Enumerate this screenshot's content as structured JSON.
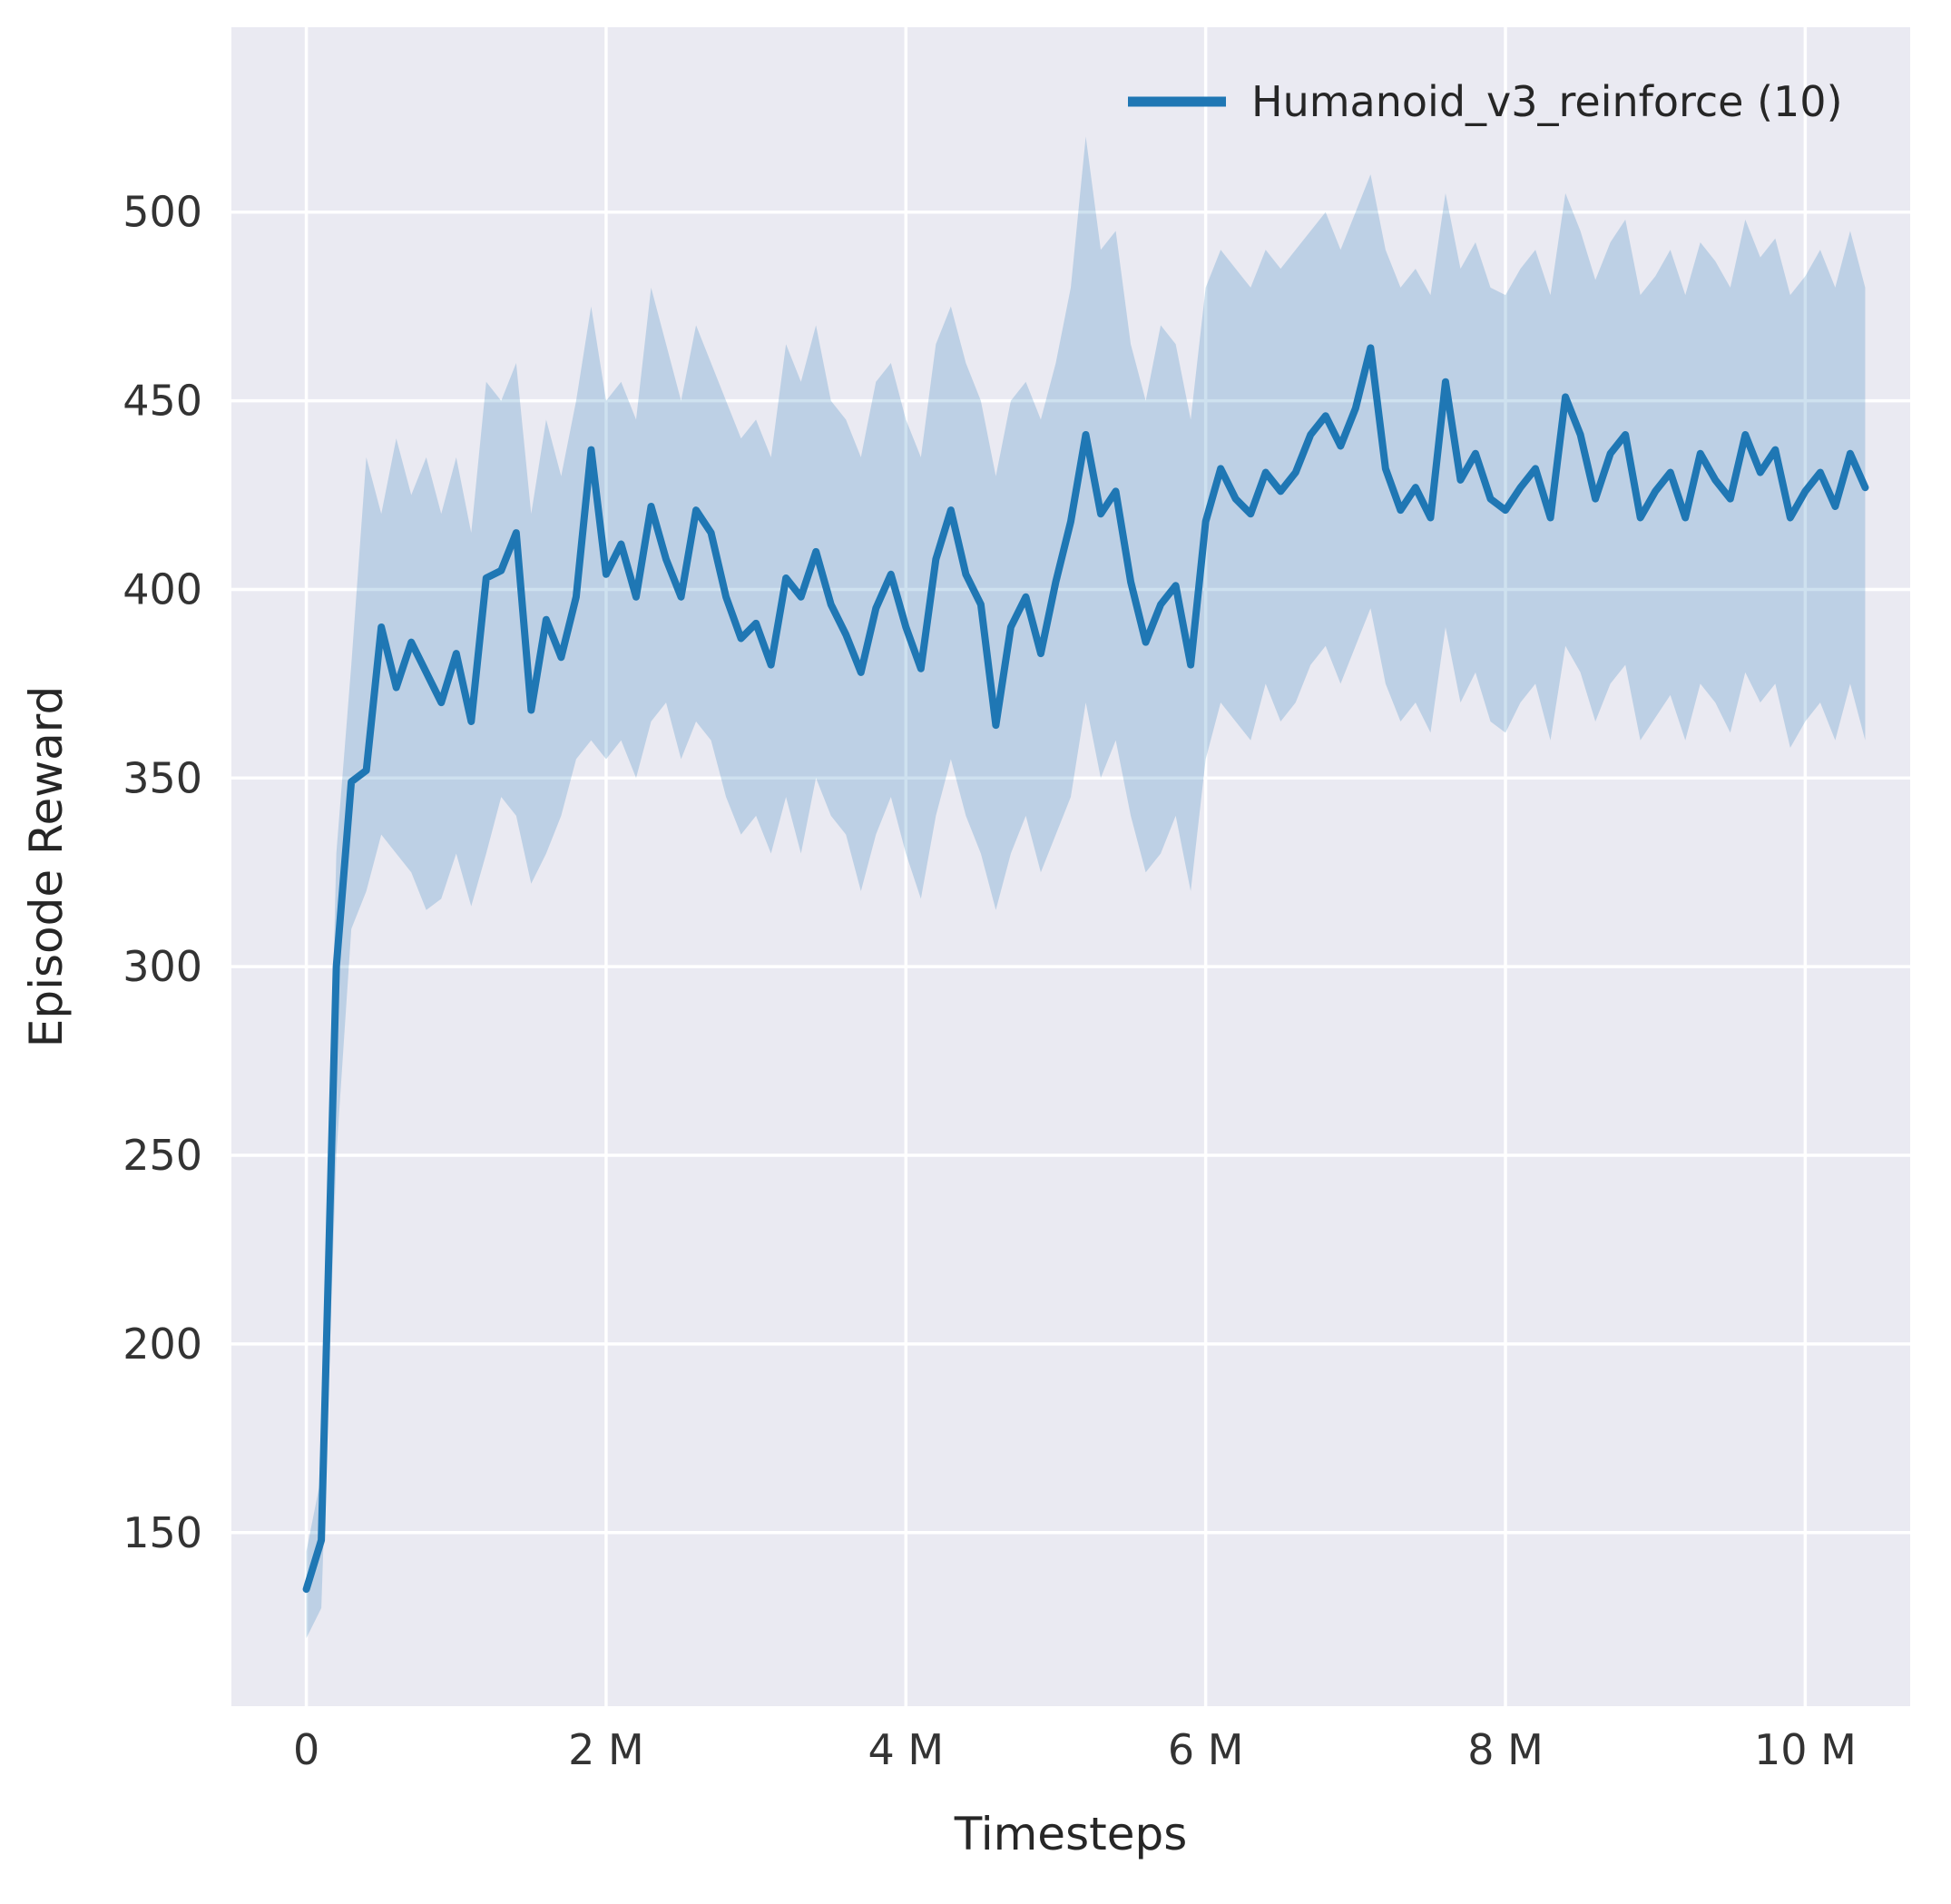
{
  "chart_data": {
    "type": "line",
    "title": "",
    "xlabel": "Timesteps",
    "ylabel": "Episode Reward",
    "legend": [
      {
        "label": "Humanoid_v3_reinforce (10)",
        "color": "#1f77b4"
      }
    ],
    "legend_position": "upper right",
    "grid": true,
    "xlim": [
      -0.5,
      10.7
    ],
    "ylim": [
      104,
      549
    ],
    "x_unit": "millions of timesteps",
    "xticks": {
      "values": [
        0,
        2,
        4,
        6,
        8,
        10
      ],
      "labels": [
        "0",
        "2 M",
        "4 M",
        "6 M",
        "8 M",
        "10 M"
      ]
    },
    "yticks": {
      "values": [
        150,
        200,
        250,
        300,
        350,
        400,
        450,
        500
      ],
      "labels": [
        "150",
        "200",
        "250",
        "300",
        "350",
        "400",
        "450",
        "500"
      ]
    },
    "style": {
      "axes_background": "#eaeaf2",
      "grid_color": "#ffffff",
      "tick_label_color": "#333333",
      "axis_label_color": "#262626",
      "line_color": "#1f77b4",
      "band_color": "#1f77b4",
      "band_opacity": 0.22,
      "line_width": 8
    },
    "series": [
      {
        "name": "Humanoid_v3_reinforce (10)",
        "color": "#1f77b4",
        "x": [
          0,
          0.1,
          0.2,
          0.3,
          0.4,
          0.5,
          0.6,
          0.7,
          0.8,
          0.9,
          1.0,
          1.1,
          1.2,
          1.3,
          1.4,
          1.5,
          1.6,
          1.7,
          1.8,
          1.9,
          2.0,
          2.1,
          2.2,
          2.3,
          2.4,
          2.5,
          2.6,
          2.7,
          2.8,
          2.9,
          3.0,
          3.1,
          3.2,
          3.3,
          3.4,
          3.5,
          3.6,
          3.7,
          3.8,
          3.9,
          4.0,
          4.1,
          4.2,
          4.3,
          4.4,
          4.5,
          4.6,
          4.7,
          4.8,
          4.9,
          5.0,
          5.1,
          5.2,
          5.3,
          5.4,
          5.5,
          5.6,
          5.7,
          5.8,
          5.9,
          6.0,
          6.1,
          6.2,
          6.3,
          6.4,
          6.5,
          6.6,
          6.7,
          6.8,
          6.9,
          7.0,
          7.1,
          7.2,
          7.3,
          7.4,
          7.5,
          7.6,
          7.7,
          7.8,
          7.9,
          8.0,
          8.1,
          8.2,
          8.3,
          8.4,
          8.5,
          8.6,
          8.7,
          8.8,
          8.9,
          9.0,
          9.1,
          9.2,
          9.3,
          9.4,
          9.5,
          9.6,
          9.7,
          9.8,
          9.9,
          10.0,
          10.1,
          10.2,
          10.3,
          10.4
        ],
        "mean": [
          135,
          148,
          300,
          349,
          352,
          390,
          374,
          386,
          378,
          370,
          383,
          365,
          403,
          405,
          415,
          368,
          392,
          382,
          398,
          437,
          404,
          412,
          398,
          422,
          408,
          398,
          421,
          415,
          398,
          387,
          391,
          380,
          403,
          398,
          410,
          396,
          388,
          378,
          395,
          404,
          390,
          379,
          408,
          421,
          404,
          396,
          364,
          390,
          398,
          383,
          402,
          418,
          441,
          420,
          426,
          402,
          386,
          396,
          401,
          380,
          418,
          432,
          424,
          420,
          431,
          426,
          431,
          441,
          446,
          438,
          448,
          464,
          432,
          421,
          427,
          419,
          455,
          429,
          436,
          424,
          421,
          427,
          432,
          419,
          451,
          441,
          424,
          436,
          441,
          419,
          426,
          431,
          419,
          436,
          429,
          424,
          441,
          431,
          437,
          419,
          426,
          431,
          422,
          436,
          427
        ],
        "lower": [
          122,
          130,
          250,
          310,
          320,
          335,
          330,
          325,
          315,
          318,
          330,
          316,
          330,
          345,
          340,
          322,
          330,
          340,
          355,
          360,
          355,
          360,
          350,
          365,
          370,
          355,
          365,
          360,
          345,
          335,
          340,
          330,
          345,
          330,
          350,
          340,
          335,
          320,
          335,
          345,
          330,
          318,
          340,
          355,
          340,
          330,
          315,
          330,
          340,
          325,
          335,
          345,
          370,
          350,
          360,
          340,
          325,
          330,
          340,
          320,
          355,
          370,
          365,
          360,
          375,
          365,
          370,
          380,
          385,
          375,
          385,
          395,
          375,
          365,
          370,
          362,
          390,
          370,
          378,
          365,
          362,
          370,
          375,
          360,
          385,
          378,
          365,
          375,
          380,
          360,
          366,
          372,
          360,
          375,
          370,
          362,
          378,
          370,
          375,
          358,
          365,
          370,
          360,
          375,
          360
        ],
        "upper": [
          145,
          165,
          330,
          380,
          435,
          420,
          440,
          425,
          435,
          420,
          435,
          415,
          455,
          450,
          460,
          420,
          445,
          430,
          450,
          475,
          450,
          455,
          445,
          480,
          465,
          450,
          470,
          460,
          450,
          440,
          445,
          435,
          465,
          455,
          470,
          450,
          445,
          435,
          455,
          460,
          445,
          435,
          465,
          475,
          460,
          450,
          430,
          450,
          455,
          445,
          460,
          480,
          520,
          490,
          495,
          465,
          450,
          470,
          465,
          445,
          480,
          490,
          485,
          480,
          490,
          485,
          490,
          495,
          500,
          490,
          500,
          510,
          490,
          480,
          485,
          478,
          505,
          485,
          492,
          480,
          478,
          485,
          490,
          478,
          505,
          495,
          482,
          492,
          498,
          478,
          483,
          490,
          478,
          492,
          487,
          480,
          498,
          488,
          493,
          478,
          483,
          490,
          480,
          495,
          480
        ]
      }
    ]
  }
}
